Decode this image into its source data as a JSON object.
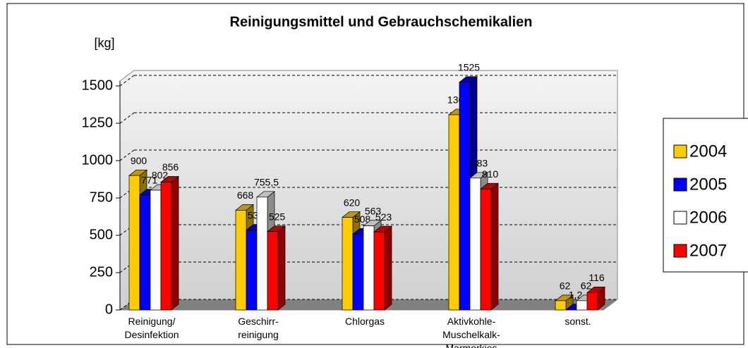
{
  "chart_data": {
    "type": "bar3d",
    "title": "Reinigungsmittel und Gebrauchschemikalien",
    "y_axis_label": "[kg]",
    "categories": [
      "Reinigung/\nDesinfektion",
      "Geschirr-\nreinigung",
      "Chlorgas",
      "Aktivkohle-\nMuschelkalk-\nMarmorkies",
      "sonst."
    ],
    "series": [
      {
        "name": "2004",
        "color": "#ffcc00",
        "values": [
          900,
          668,
          620,
          1307,
          62
        ]
      },
      {
        "name": "2005",
        "color": "#0000ff",
        "values": [
          771,
          535,
          508,
          1525,
          1.2
        ],
        "value_labels": [
          "771",
          "535",
          "508",
          "1525",
          "1,2"
        ]
      },
      {
        "name": "2006",
        "color": "#ffffff",
        "values": [
          802,
          755.5,
          563,
          883,
          62
        ],
        "value_labels": [
          "802",
          "755,5",
          "563",
          "883",
          "62"
        ]
      },
      {
        "name": "2007",
        "color": "#ff0000",
        "values": [
          856,
          525,
          523,
          810,
          116
        ]
      }
    ],
    "ylim": [
      0,
      1600
    ],
    "yticks": [
      0,
      250,
      500,
      750,
      1000,
      1250,
      1500
    ],
    "grid": true,
    "legend": "right"
  }
}
